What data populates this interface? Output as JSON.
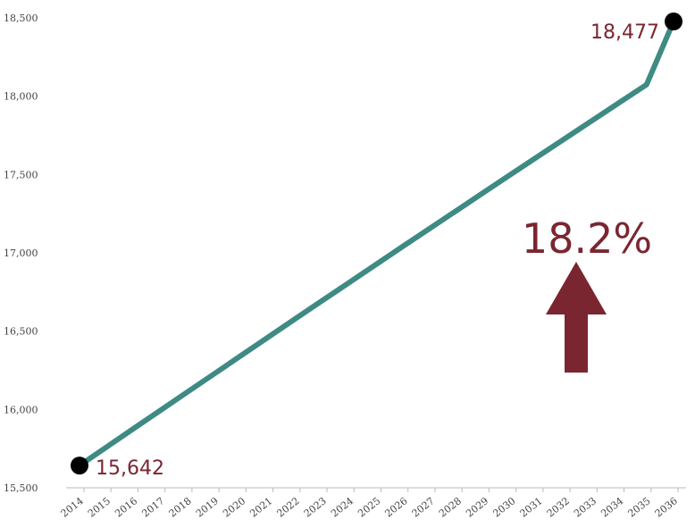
{
  "chart_data": {
    "type": "line",
    "x": [
      "2014",
      "2015",
      "2016",
      "2017",
      "2018",
      "2019",
      "2020",
      "2021",
      "2022",
      "2023",
      "2024",
      "2025",
      "2026",
      "2027",
      "2028",
      "2029",
      "2030",
      "2031",
      "2032",
      "2033",
      "2034",
      "2035",
      "2036"
    ],
    "series": [
      {
        "values": [
          15642,
          15760,
          15878,
          15995,
          16112,
          16229,
          16346,
          16463,
          16580,
          16696,
          16812,
          16928,
          17044,
          17159,
          17274,
          17389,
          17504,
          17618,
          17732,
          17846,
          17960,
          18074,
          18477
        ]
      }
    ],
    "yticks": [
      "15,500",
      "16,000",
      "16,500",
      "17,000",
      "17,500",
      "18,000",
      "18,500"
    ],
    "ytick_values": [
      15500,
      16000,
      16500,
      17000,
      17500,
      18000,
      18500
    ],
    "ylim": [
      15500,
      18500
    ],
    "grid": false,
    "annotations": {
      "start_label": "15,642",
      "end_label": "18,477",
      "change_label": "18.2%",
      "change_direction": "up"
    },
    "colors": {
      "line": "#3e8a84",
      "marker": "#000000",
      "label": "#7a2630",
      "arrow": "#7a2630",
      "axis": "#bbbbbb"
    }
  }
}
